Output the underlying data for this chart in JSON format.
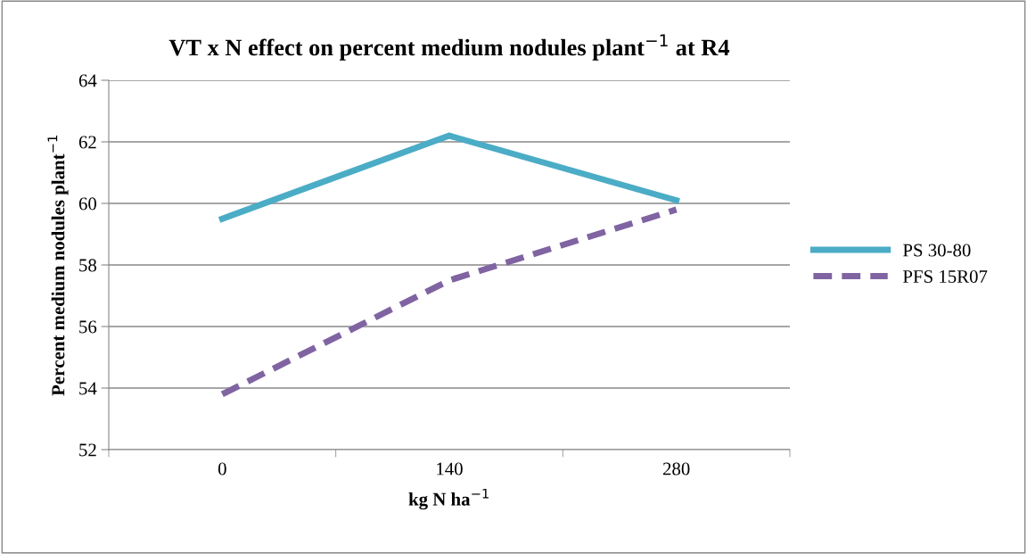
{
  "chart_data": {
    "type": "line",
    "title": "VT x N effect on percent medium nodules plant$^{−1}$ at R4",
    "xlabel": "kg N ha$^{−1}$",
    "ylabel": "Percent medium nodules plant$^{−1}$",
    "categories": [
      "0",
      "140",
      "280"
    ],
    "series": [
      {
        "name": "PS 30-80",
        "color": "#4bacc6",
        "values": [
          59.5,
          62.2,
          60.1
        ],
        "line_style": "solid"
      },
      {
        "name": "PFS 15R07",
        "color": "#8064a2",
        "values": [
          53.8,
          57.5,
          59.8
        ],
        "line_style": "dashed"
      }
    ],
    "ylim": [
      52,
      64
    ],
    "yticks": [
      52,
      54,
      56,
      58,
      60,
      62,
      64
    ],
    "grid": "y",
    "legend": "right",
    "marker": "none"
  }
}
